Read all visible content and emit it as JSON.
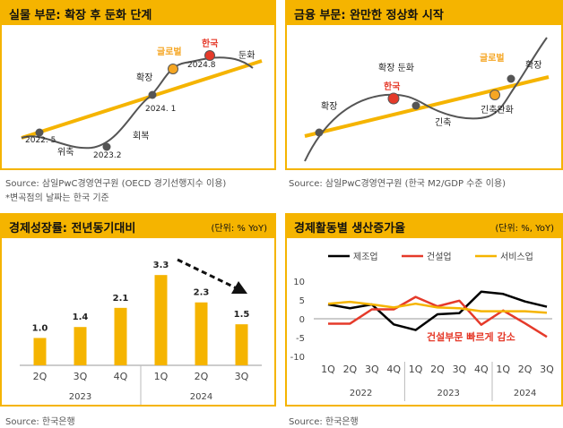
{
  "colors": {
    "accent": "#f5b400",
    "orange_point": "#f5a623",
    "red_point": "#e53a2a",
    "curve": "#555555",
    "gray_dot": "#555555"
  },
  "panel1": {
    "title": "실물 부문: 확장 후 둔화 단계",
    "source": "Source: 삼일PwC경영연구원 (OECD 경기선행지수 이용)",
    "note": "*변곡점의 날짜는 한국 기준",
    "labels": {
      "d2022_5": "2022. 5",
      "wichuk": "위축",
      "d2023_2": "2023.2",
      "hoebok": "회복",
      "d2024_1": "2024. 1",
      "hwakjang": "확장",
      "global": "글로벌",
      "d2024_8": "2024.8",
      "korea": "한국",
      "dunhwa": "둔화"
    }
  },
  "panel2": {
    "title": "금융 부문: 완만한 정상화 시작",
    "source": "Source: 삼일PwC경영연구원 (한국 M2/GDP 수준 이용)",
    "labels": {
      "hwakjang": "확장",
      "hwakjang_dunhwa": "확장 둔화",
      "korea": "한국",
      "ginchuk": "긴축",
      "global": "글로벌",
      "ginchuk_wanhwa": "긴축완화",
      "hwakjang2": "확장"
    }
  },
  "panel3": {
    "title": "경제성장률: 전년동기대비",
    "unit": "(단위: % YoY)",
    "source": "Source: 한국은행",
    "chart_data": {
      "type": "bar",
      "title": "경제성장률: 전년동기대비",
      "unit": "% YoY",
      "categories": [
        "2Q",
        "3Q",
        "4Q",
        "1Q",
        "2Q",
        "3Q"
      ],
      "years": [
        {
          "label": "2023",
          "span": 3
        },
        {
          "label": "2024",
          "span": 3
        }
      ],
      "values": [
        1.0,
        1.4,
        2.1,
        3.3,
        2.3,
        1.5
      ],
      "value_labels": [
        "1.0",
        "1.4",
        "2.1",
        "3.3",
        "2.3",
        "1.5"
      ],
      "ylim": [
        0,
        3.6
      ],
      "trend_arrow": "dashed arrow pointing down over 2024 bars"
    }
  },
  "panel4": {
    "title": "경제활동별 생산증가율",
    "unit": "(단위: %, YoY)",
    "source": "Source: 한국은행",
    "annotation": "건설부문 빠르게 감소",
    "chart_data": {
      "type": "line",
      "title": "경제활동별 생산증가율",
      "unit": "%, YoY",
      "x": [
        "1Q",
        "2Q",
        "3Q",
        "4Q",
        "1Q",
        "2Q",
        "3Q",
        "4Q",
        "1Q",
        "2Q",
        "3Q"
      ],
      "years": [
        {
          "label": "2022",
          "span": 4
        },
        {
          "label": "2023",
          "span": 4
        },
        {
          "label": "2024",
          "span": 3
        }
      ],
      "ylim": [
        -10,
        10
      ],
      "yticks": [
        10,
        5,
        0,
        -5,
        -10
      ],
      "ytick_labels": [
        "10",
        "5",
        "0",
        "-5",
        "-10"
      ],
      "series": [
        {
          "name": "제조업",
          "color": "#000000",
          "values": [
            3.8,
            2.8,
            3.8,
            -1.5,
            -3.0,
            1.2,
            1.5,
            7.2,
            6.6,
            4.6,
            3.2
          ]
        },
        {
          "name": "건설업",
          "color": "#e53a2a",
          "values": [
            -1.3,
            -1.3,
            2.5,
            2.5,
            5.8,
            3.3,
            4.8,
            -1.6,
            2.2,
            -1.2,
            -4.8
          ]
        },
        {
          "name": "서비스업",
          "color": "#f5b400",
          "values": [
            4.0,
            4.5,
            3.8,
            3.0,
            4.0,
            3.0,
            2.8,
            2.0,
            2.0,
            2.0,
            1.6
          ]
        }
      ]
    }
  }
}
